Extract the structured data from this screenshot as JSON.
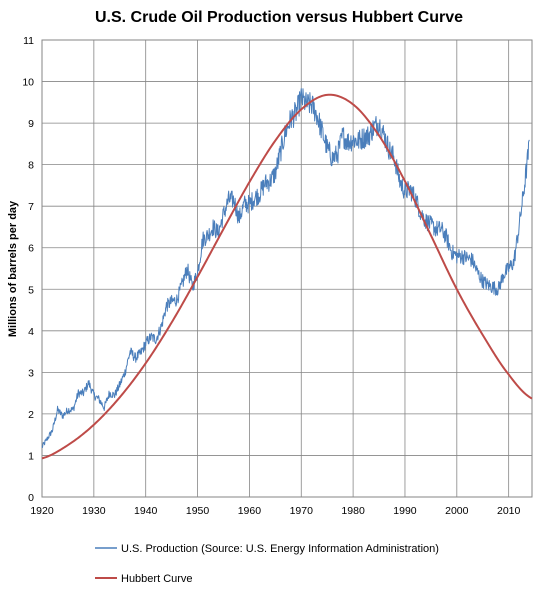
{
  "chart_data": {
    "type": "line",
    "title": "U.S. Crude Oil Production versus Hubbert Curve",
    "xlabel": "",
    "ylabel": "Millions of barrels per day",
    "xlim": [
      1920,
      2014.5
    ],
    "ylim": [
      0,
      11
    ],
    "x_ticks": [
      1920,
      1930,
      1940,
      1950,
      1960,
      1970,
      1980,
      1990,
      2000,
      2010
    ],
    "y_ticks": [
      0,
      1,
      2,
      3,
      4,
      5,
      6,
      7,
      8,
      9,
      10,
      11
    ],
    "grid": true,
    "legend_position": "bottom",
    "series": [
      {
        "name": "U.S. Production (Source: U.S. Energy Information Administration)",
        "color": "#4a7ebb",
        "x": [
          1920,
          1921,
          1922,
          1923,
          1924,
          1925,
          1926,
          1927,
          1928,
          1929,
          1930,
          1931,
          1932,
          1933,
          1934,
          1935,
          1936,
          1937,
          1938,
          1939,
          1940,
          1941,
          1942,
          1943,
          1944,
          1945,
          1946,
          1947,
          1948,
          1949,
          1950,
          1951,
          1952,
          1953,
          1954,
          1955,
          1956,
          1957,
          1958,
          1959,
          1960,
          1961,
          1962,
          1963,
          1964,
          1965,
          1966,
          1967,
          1968,
          1969,
          1970,
          1971,
          1972,
          1973,
          1974,
          1975,
          1976,
          1977,
          1978,
          1979,
          1980,
          1981,
          1982,
          1983,
          1984,
          1985,
          1986,
          1987,
          1988,
          1989,
          1990,
          1991,
          1992,
          1993,
          1994,
          1995,
          1996,
          1997,
          1998,
          1999,
          2000,
          2001,
          2002,
          2003,
          2004,
          2005,
          2006,
          2007,
          2008,
          2009,
          2010,
          2011,
          2012,
          2013,
          2014
        ],
        "values": [
          1.2,
          1.4,
          1.6,
          2.1,
          1.95,
          2.1,
          2.1,
          2.5,
          2.5,
          2.75,
          2.45,
          2.35,
          2.15,
          2.5,
          2.45,
          2.7,
          3.0,
          3.5,
          3.35,
          3.45,
          3.7,
          3.85,
          3.8,
          4.1,
          4.6,
          4.7,
          4.75,
          5.1,
          5.5,
          5.05,
          5.4,
          6.2,
          6.3,
          6.5,
          6.35,
          6.8,
          7.15,
          7.15,
          6.7,
          7.05,
          7.05,
          7.2,
          7.3,
          7.55,
          7.6,
          7.8,
          8.3,
          8.8,
          9.1,
          9.25,
          9.6,
          9.45,
          9.45,
          9.2,
          8.8,
          8.4,
          8.15,
          8.25,
          8.7,
          8.55,
          8.6,
          8.57,
          8.65,
          8.7,
          8.9,
          9.0,
          8.7,
          8.35,
          8.15,
          7.6,
          7.35,
          7.4,
          7.2,
          6.85,
          6.65,
          6.55,
          6.45,
          6.45,
          6.25,
          5.9,
          5.8,
          5.8,
          5.75,
          5.7,
          5.4,
          5.2,
          5.1,
          5.05,
          5.0,
          5.35,
          5.5,
          5.65,
          6.5,
          7.45,
          8.5
        ]
      },
      {
        "name": "Hubbert Curve",
        "color": "#be4b48",
        "peak": {
          "x": 1974.5,
          "y": 9.68
        },
        "x": [
          1920,
          1925,
          1930,
          1935,
          1940,
          1945,
          1950,
          1955,
          1960,
          1965,
          1970,
          1975,
          1980,
          1985,
          1990,
          1995,
          2000,
          2005,
          2010,
          2014.5
        ],
        "values": [
          0.93,
          1.25,
          1.74,
          2.4,
          3.22,
          4.2,
          5.3,
          6.45,
          7.58,
          8.58,
          9.33,
          9.68,
          9.45,
          8.7,
          7.6,
          6.3,
          5.0,
          3.9,
          2.95,
          2.37
        ]
      }
    ]
  }
}
